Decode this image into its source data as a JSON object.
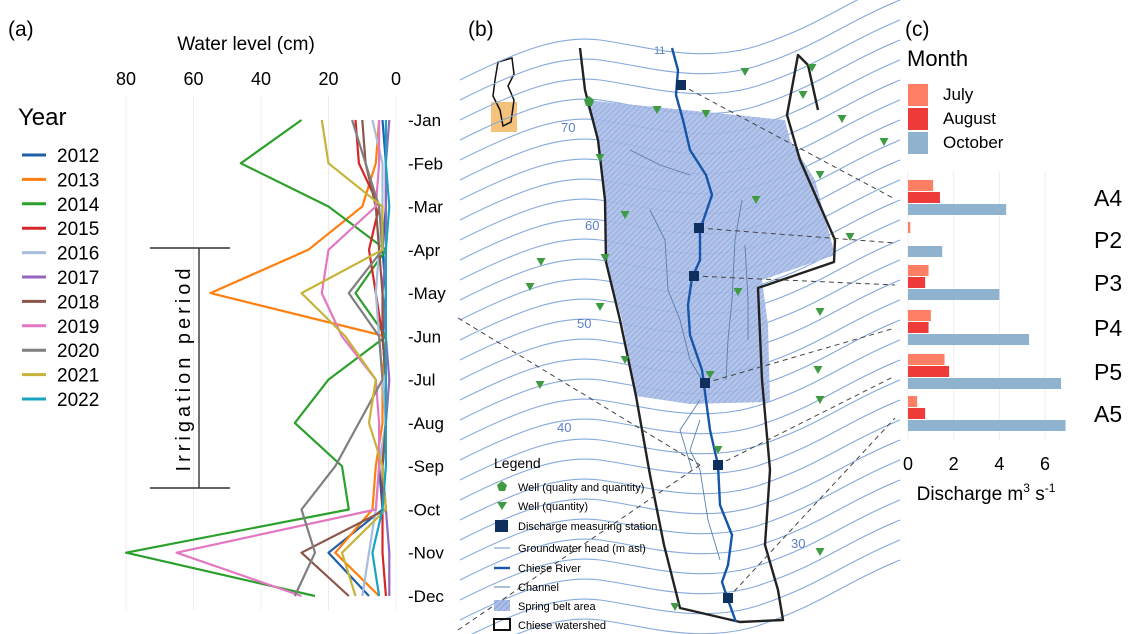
{
  "panels": {
    "a": "(a)",
    "b": "(b)",
    "c": "(c)"
  },
  "chart_data": [
    {
      "type": "line",
      "panel": "(a)",
      "title": "Water level (cm)",
      "x_axis": {
        "label": "Water level (cm)",
        "reversed": true,
        "range": [
          80,
          0
        ],
        "ticks": [
          80,
          60,
          40,
          20,
          0
        ]
      },
      "y_axis": {
        "categories": [
          "Jan",
          "Feb",
          "Mar",
          "Apr",
          "May",
          "Jun",
          "Jul",
          "Aug",
          "Sep",
          "Oct",
          "Nov",
          "Dec"
        ]
      },
      "legend": {
        "title": "Year",
        "position": "left"
      },
      "annotation": "Irrigation period",
      "series": [
        {
          "name": "2012",
          "color": "#1f5fa8",
          "values": [
            4,
            3,
            3,
            4,
            3,
            4,
            3,
            3,
            5,
            4,
            20,
            8
          ]
        },
        {
          "name": "2013",
          "color": "#ff7f0e",
          "values": [
            5,
            6,
            10,
            26,
            55,
            3,
            4,
            4,
            6,
            7,
            18,
            5
          ]
        },
        {
          "name": "2014",
          "color": "#2ca02c",
          "values": [
            28,
            46,
            20,
            3,
            12,
            3,
            20,
            30,
            16,
            14,
            80,
            24
          ]
        },
        {
          "name": "2015",
          "color": "#d62728",
          "values": [
            12,
            11,
            5,
            8,
            6,
            4,
            3,
            3,
            4,
            4,
            4,
            3
          ]
        },
        {
          "name": "2016",
          "color": "#a6bddb",
          "values": [
            7,
            4,
            4,
            5,
            6,
            5,
            4,
            3,
            5,
            6,
            8,
            10
          ]
        },
        {
          "name": "2017",
          "color": "#9467bd",
          "values": [
            2,
            3,
            3,
            3,
            4,
            3,
            2,
            3,
            4,
            3,
            2,
            2
          ]
        },
        {
          "name": "2018",
          "color": "#8c564b",
          "values": [
            10,
            9,
            6,
            5,
            4,
            4,
            3,
            3,
            4,
            3,
            28,
            14
          ]
        },
        {
          "name": "2019",
          "color": "#e377c2",
          "values": [
            5,
            5,
            6,
            20,
            22,
            16,
            6,
            5,
            5,
            6,
            65,
            28
          ]
        },
        {
          "name": "2020",
          "color": "#7f7f7f",
          "values": [
            13,
            9,
            5,
            4,
            14,
            5,
            4,
            11,
            18,
            28,
            24,
            30
          ]
        },
        {
          "name": "2021",
          "color": "#c8b33a",
          "values": [
            22,
            20,
            4,
            4,
            28,
            15,
            6,
            8,
            4,
            3,
            16,
            12
          ]
        },
        {
          "name": "2022",
          "color": "#17a3c4",
          "values": [
            3,
            3,
            2,
            3,
            3,
            3,
            3,
            3,
            3,
            4,
            7,
            5
          ]
        }
      ]
    },
    {
      "type": "bar",
      "panel": "(c)",
      "orientation": "horizontal",
      "x_axis": {
        "label": "Discharge m³ s⁻¹",
        "range": [
          0,
          7
        ],
        "ticks": [
          0,
          2,
          4,
          6
        ]
      },
      "categories": [
        "A4",
        "P2",
        "P3",
        "P4",
        "P5",
        "A5"
      ],
      "legend": {
        "title": "Month",
        "position": "top"
      },
      "series": [
        {
          "name": "July",
          "color": "#ff7f64",
          "values": [
            1.1,
            0.1,
            0.9,
            1.0,
            1.6,
            0.4
          ]
        },
        {
          "name": "August",
          "color": "#ef3a3a",
          "values": [
            1.4,
            0.0,
            0.75,
            0.9,
            1.8,
            0.75
          ]
        },
        {
          "name": "October",
          "color": "#8fb3cf",
          "values": [
            4.3,
            1.5,
            4.0,
            5.3,
            6.7,
            6.9
          ]
        }
      ]
    }
  ],
  "map": {
    "contour_labels": [
      "70",
      "60",
      "50",
      "40",
      "30",
      "11"
    ],
    "legend": {
      "title": "Legend",
      "items": [
        "Well (quality and quantity)",
        "Well (quantity)",
        "Discharge measuring station",
        "Groundwater head (m asl)",
        "Chiese River",
        "Channel",
        "Spring belt area",
        "Chiese watershed"
      ]
    }
  }
}
